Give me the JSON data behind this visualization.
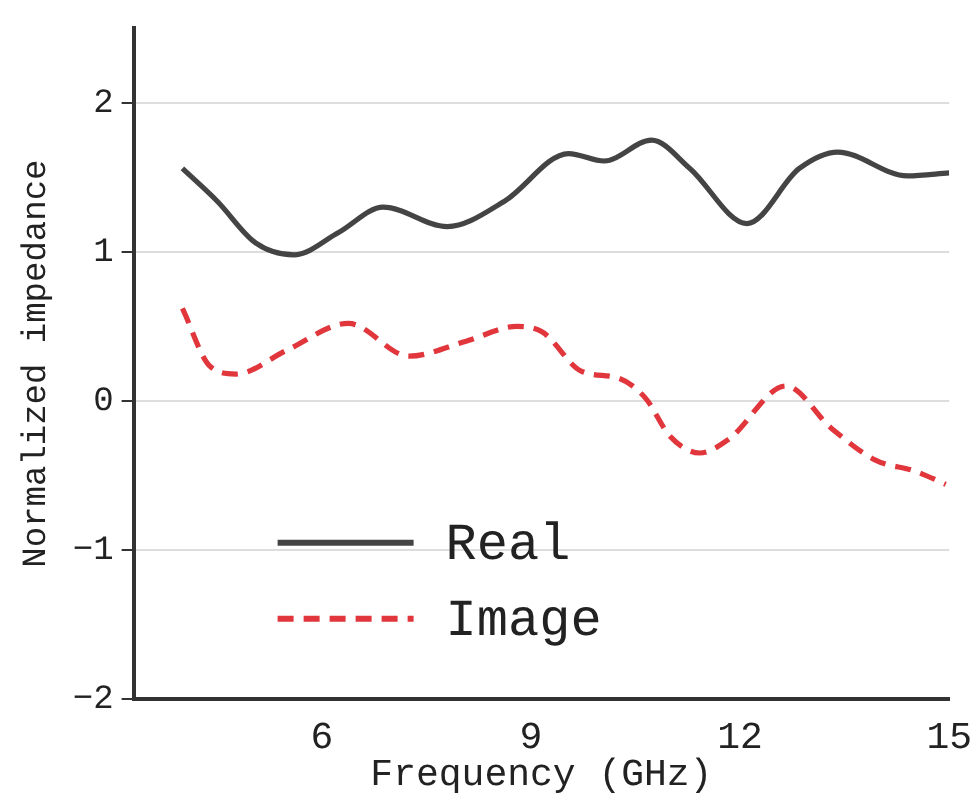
{
  "chart_data": {
    "type": "line",
    "xlabel": "Frequency (GHz)",
    "ylabel": "Normalized impedance",
    "xlim": [
      3.3,
      15
    ],
    "xticks": [
      6,
      9,
      12,
      15
    ],
    "ylim": [
      -2,
      2.5
    ],
    "yticks": [
      -2,
      -1,
      0,
      1,
      2
    ],
    "grid": "y",
    "legend": "bottom left",
    "marker": "none",
    "series": [
      {
        "name": "Real",
        "color": "#444444",
        "line_style": "solid",
        "x": [
          4.0,
          4.5,
          5.05,
          5.6,
          6.24,
          6.88,
          7.8,
          8.62,
          9.54,
          10.05,
          10.73,
          11.28,
          12.1,
          12.85,
          13.4,
          14.4,
          15.0
        ],
        "values": [
          1.56,
          1.34,
          1.06,
          0.98,
          1.13,
          1.3,
          1.17,
          1.34,
          1.66,
          1.61,
          1.75,
          1.56,
          1.19,
          1.56,
          1.67,
          1.51,
          1.53
        ]
      },
      {
        "name": "Image",
        "color": "#e0363c",
        "line_style": "dashed",
        "x": [
          4.0,
          4.4,
          4.77,
          5.5,
          6.38,
          7.25,
          8.07,
          8.8,
          9.17,
          9.72,
          10.27,
          10.64,
          11.0,
          11.42,
          11.83,
          12.66,
          13.3,
          13.95,
          14.5,
          14.95
        ],
        "values": [
          0.62,
          0.23,
          0.18,
          0.34,
          0.52,
          0.3,
          0.4,
          0.5,
          0.46,
          0.2,
          0.15,
          0.02,
          -0.24,
          -0.35,
          -0.26,
          0.1,
          -0.18,
          -0.4,
          -0.47,
          -0.56
        ]
      }
    ]
  }
}
